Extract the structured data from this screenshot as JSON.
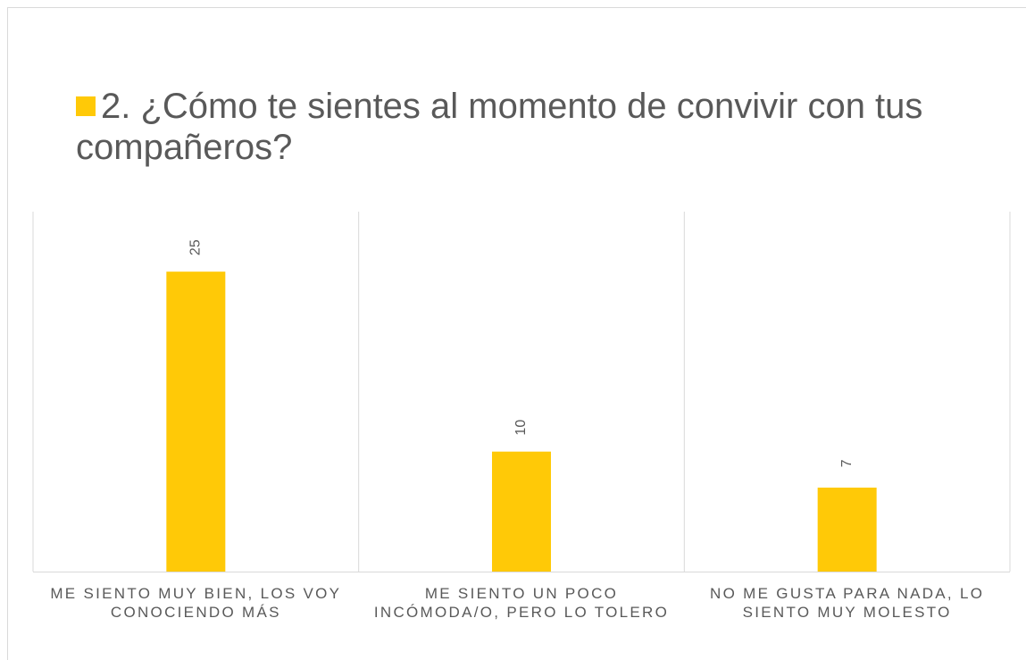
{
  "chart_data": {
    "type": "bar",
    "categories": [
      "ME SIENTO MUY BIEN, LOS VOY CONOCIENDO MÁS",
      "ME SIENTO UN POCO INCÓMODA/O, PERO LO TOLERO",
      "NO ME GUSTA PARA NADA, LO SIENTO MUY MOLESTO"
    ],
    "series": [
      {
        "name": "2. ¿Cómo te sientes al momento de convivir con tus compañeros?",
        "color": "#ffc907",
        "values": [
          25,
          10,
          7
        ]
      }
    ],
    "ylim": [
      0,
      30
    ],
    "legend": "top",
    "grid": false
  }
}
